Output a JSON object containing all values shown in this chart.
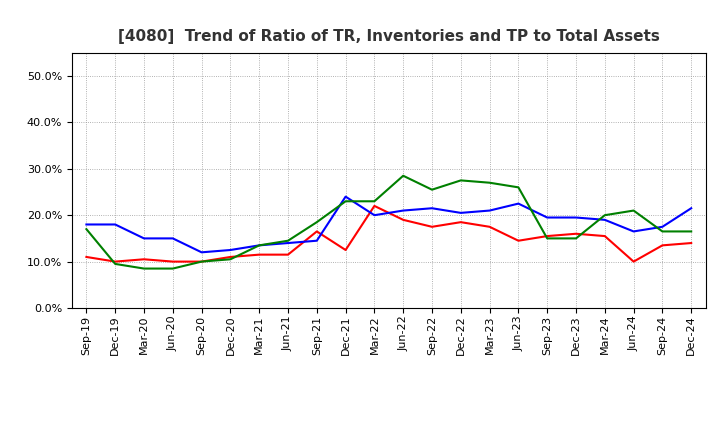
{
  "title": "[4080]  Trend of Ratio of TR, Inventories and TP to Total Assets",
  "labels": [
    "Sep-19",
    "Dec-19",
    "Mar-20",
    "Jun-20",
    "Sep-20",
    "Dec-20",
    "Mar-21",
    "Jun-21",
    "Sep-21",
    "Dec-21",
    "Mar-22",
    "Jun-22",
    "Sep-22",
    "Dec-22",
    "Mar-23",
    "Jun-23",
    "Sep-23",
    "Dec-23",
    "Mar-24",
    "Jun-24",
    "Sep-24",
    "Dec-24"
  ],
  "trade_receivables": [
    0.11,
    0.1,
    0.105,
    0.1,
    0.1,
    0.11,
    0.115,
    0.115,
    0.165,
    0.125,
    0.22,
    0.19,
    0.175,
    0.185,
    0.175,
    0.145,
    0.155,
    0.16,
    0.155,
    0.1,
    0.135,
    0.14
  ],
  "inventories": [
    0.18,
    0.18,
    0.15,
    0.15,
    0.12,
    0.125,
    0.135,
    0.14,
    0.145,
    0.24,
    0.2,
    0.21,
    0.215,
    0.205,
    0.21,
    0.225,
    0.195,
    0.195,
    0.19,
    0.165,
    0.175,
    0.215
  ],
  "trade_payables": [
    0.17,
    0.095,
    0.085,
    0.085,
    0.1,
    0.105,
    0.135,
    0.145,
    0.185,
    0.23,
    0.23,
    0.285,
    0.255,
    0.275,
    0.27,
    0.26,
    0.15,
    0.15,
    0.2,
    0.21,
    0.165,
    0.165
  ],
  "tr_color": "#ff0000",
  "inv_color": "#0000ff",
  "tp_color": "#008000",
  "ylim": [
    0.0,
    0.55
  ],
  "yticks": [
    0.0,
    0.1,
    0.2,
    0.3,
    0.4,
    0.5
  ],
  "background_color": "#ffffff",
  "grid_color": "#999999",
  "title_fontsize": 11,
  "tick_fontsize": 8,
  "legend_fontsize": 9
}
